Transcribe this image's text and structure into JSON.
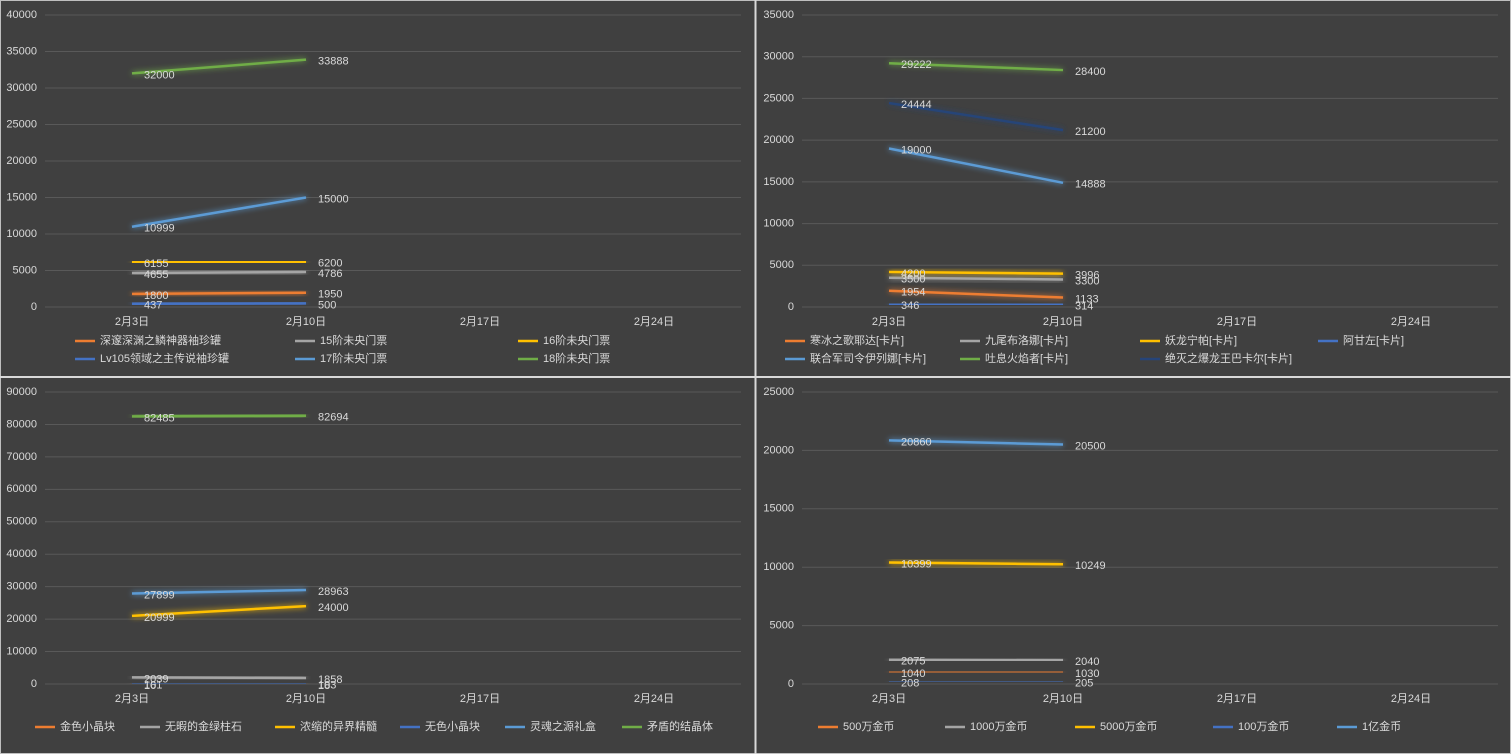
{
  "chart_data": [
    {
      "type": "line",
      "categories": [
        "2月3日",
        "2月10日",
        "2月17日",
        "2月24日"
      ],
      "ylim": [
        0,
        40000
      ],
      "yticks": [
        0,
        5000,
        10000,
        15000,
        20000,
        25000,
        30000,
        35000,
        40000
      ],
      "grid": true,
      "series": [
        {
          "name": "深邃深渊之鳞神器袖珍罐",
          "color": "#ed7d31",
          "values": [
            1800,
            1950,
            null,
            null
          ]
        },
        {
          "name": "15阶未央门票",
          "color": "#a5a5a5",
          "values": [
            4655,
            4786,
            null,
            null
          ]
        },
        {
          "name": "16阶未央门票",
          "color": "#ffc000",
          "values": [
            6155,
            6200,
            null,
            null
          ]
        },
        {
          "name": "Lv105领域之主传说袖珍罐",
          "color": "#4472c4",
          "values": [
            437,
            500,
            null,
            null
          ]
        },
        {
          "name": "17阶未央门票",
          "color": "#5b9bd5",
          "values": [
            10999,
            15000,
            null,
            null
          ]
        },
        {
          "name": "18阶未央门票",
          "color": "#70ad47",
          "values": [
            32000,
            33888,
            null,
            null
          ]
        }
      ]
    },
    {
      "type": "line",
      "categories": [
        "2月3日",
        "2月10日",
        "2月17日",
        "2月24日"
      ],
      "ylim": [
        0,
        35000
      ],
      "yticks": [
        0,
        5000,
        10000,
        15000,
        20000,
        25000,
        30000,
        35000
      ],
      "grid": true,
      "series": [
        {
          "name": "寒冰之歌耶达[卡片]",
          "color": "#ed7d31",
          "values": [
            1954,
            1133,
            null,
            null
          ]
        },
        {
          "name": "九尾布洛娜[卡片]",
          "color": "#a5a5a5",
          "values": [
            3500,
            3300,
            null,
            null
          ]
        },
        {
          "name": "妖龙宁帕[卡片]",
          "color": "#ffc000",
          "values": [
            4200,
            3996,
            null,
            null
          ]
        },
        {
          "name": "阿甘左[卡片]",
          "color": "#4472c4",
          "values": [
            346,
            314,
            null,
            null
          ]
        },
        {
          "name": "联合军司令伊列娜[卡片]",
          "color": "#5b9bd5",
          "values": [
            19000,
            14888,
            null,
            null
          ]
        },
        {
          "name": "吐息火焰者[卡片]",
          "color": "#70ad47",
          "values": [
            29222,
            28400,
            null,
            null
          ]
        },
        {
          "name": "绝灭之爆龙王巴卡尔[卡片]",
          "color": "#264478",
          "values": [
            24444,
            21200,
            null,
            null
          ]
        }
      ]
    },
    {
      "type": "line",
      "categories": [
        "2月3日",
        "2月10日",
        "2月17日",
        "2月24日"
      ],
      "ylim": [
        0,
        90000
      ],
      "yticks": [
        0,
        10000,
        20000,
        30000,
        40000,
        50000,
        60000,
        70000,
        80000,
        90000
      ],
      "grid": true,
      "series": [
        {
          "name": "金色小晶块",
          "color": "#ed7d31",
          "values": [
            101,
            103,
            null,
            null
          ]
        },
        {
          "name": "无暇的金绿柱石",
          "color": "#a5a5a5",
          "values": [
            2039,
            1858,
            null,
            null
          ]
        },
        {
          "name": "浓缩的异界精髓",
          "color": "#ffc000",
          "values": [
            20999,
            24000,
            null,
            null
          ]
        },
        {
          "name": "无色小晶块",
          "color": "#4472c4",
          "values": [
            16,
            18,
            null,
            null
          ]
        },
        {
          "name": "灵魂之源礼盒",
          "color": "#5b9bd5",
          "values": [
            27899,
            28963,
            null,
            null
          ]
        },
        {
          "name": "矛盾的结晶体",
          "color": "#70ad47",
          "values": [
            82485,
            82694,
            null,
            null
          ]
        }
      ]
    },
    {
      "type": "line",
      "categories": [
        "2月3日",
        "2月10日",
        "2月17日",
        "2月24日"
      ],
      "ylim": [
        0,
        25000
      ],
      "yticks": [
        0,
        5000,
        10000,
        15000,
        20000,
        25000
      ],
      "grid": true,
      "series": [
        {
          "name": "500万金币",
          "color": "#ed7d31",
          "values": [
            1040,
            1030,
            null,
            null
          ]
        },
        {
          "name": "1000万金币",
          "color": "#a5a5a5",
          "values": [
            2075,
            2040,
            null,
            null
          ]
        },
        {
          "name": "5000万金币",
          "color": "#ffc000",
          "values": [
            10399,
            10249,
            null,
            null
          ]
        },
        {
          "name": "100万金币",
          "color": "#4472c4",
          "values": [
            208,
            205,
            null,
            null
          ]
        },
        {
          "name": "1亿金币",
          "color": "#5b9bd5",
          "values": [
            20860,
            20500,
            null,
            null
          ]
        }
      ]
    }
  ]
}
